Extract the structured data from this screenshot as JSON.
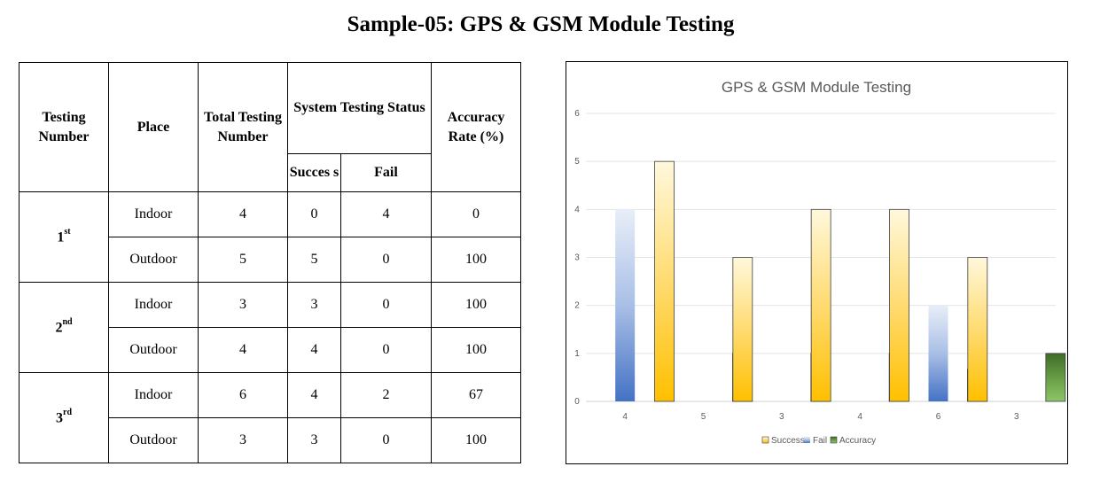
{
  "title": "Sample-05: GPS & GSM Module Testing",
  "table": {
    "headers": {
      "testing_number": "Testing Number",
      "place": "Place",
      "total": "Total Testing Number",
      "status": "System Testing Status",
      "success": "Succes s",
      "fail": "Fail",
      "accuracy": "Accuracy Rate (%)"
    },
    "groups": [
      {
        "num": "1",
        "suffix": "st",
        "rows": [
          {
            "place": "Indoor",
            "total": "4",
            "success": "0",
            "fail": "4",
            "accuracy": "0"
          },
          {
            "place": "Outdoor",
            "total": "5",
            "success": "5",
            "fail": "0",
            "accuracy": "100"
          }
        ]
      },
      {
        "num": "2",
        "suffix": "nd",
        "rows": [
          {
            "place": "Indoor",
            "total": "3",
            "success": "3",
            "fail": "0",
            "accuracy": "100"
          },
          {
            "place": "Outdoor",
            "total": "4",
            "success": "4",
            "fail": "0",
            "accuracy": "100"
          }
        ]
      },
      {
        "num": "3",
        "suffix": "rd",
        "rows": [
          {
            "place": "Indoor",
            "total": "6",
            "success": "4",
            "fail": "2",
            "accuracy": "67"
          },
          {
            "place": "Outdoor",
            "total": "3",
            "success": "3",
            "fail": "0",
            "accuracy": "100"
          }
        ]
      }
    ]
  },
  "chart_data": {
    "type": "bar",
    "title": "GPS & GSM Module Testing",
    "categories": [
      "4",
      "5",
      "3",
      "4",
      "6",
      "3"
    ],
    "series": [
      {
        "name": "Success",
        "values": [
          0,
          5,
          3,
          4,
          4,
          3
        ],
        "color": "#FFC000"
      },
      {
        "name": "Fail",
        "values": [
          4,
          0,
          0,
          0,
          2,
          0
        ],
        "color": "#4472C4"
      },
      {
        "name": "Accuracy",
        "values": [
          0,
          1,
          1,
          1,
          0.67,
          1
        ],
        "color": "#548235"
      }
    ],
    "yticks": [
      "0",
      "1",
      "2",
      "3",
      "4",
      "5",
      "6"
    ],
    "ylim": [
      0,
      6
    ],
    "grid": true,
    "legend": "bottom"
  }
}
